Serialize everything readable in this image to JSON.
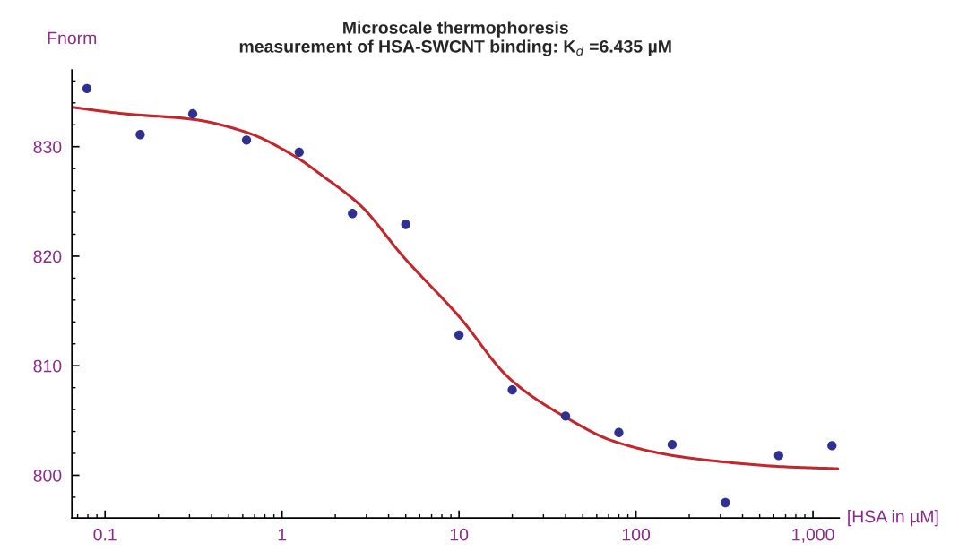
{
  "chart_data": {
    "type": "scatter",
    "title": "Microscale thermophoresis\nmeasurement of HSA-SWCNT binding: K$_{d}$ =6.435 µM",
    "xlabel": "[HSA in µM]",
    "ylabel": "Fnorm",
    "log": "x",
    "xlim": [
      0.065,
      1405
    ],
    "ylim": [
      796.1,
      837.0
    ],
    "xticks": [
      0.1,
      1,
      10,
      100,
      {
        "value": 1000,
        "label": "1,000"
      }
    ],
    "yticks": [
      800,
      810,
      820,
      830
    ],
    "grid": false,
    "legend": false,
    "series": [
      {
        "marker": "circle",
        "color": "#2e3192",
        "x": [
          0.079,
          0.158,
          0.313,
          0.63,
          1.25,
          2.5,
          5.0,
          10,
          20,
          40,
          80,
          160,
          320,
          640,
          1280
        ],
        "values": [
          835.3,
          831.1,
          833.0,
          830.6,
          829.5,
          823.9,
          822.9,
          812.8,
          807.8,
          805.4,
          803.9,
          802.8,
          797.5,
          801.8,
          802.7
        ]
      },
      {
        "type": "line",
        "color": "#c1272d",
        "line_style": "solid",
        "x": [
          0.065,
          0.129,
          0.313,
          0.632,
          1.16,
          1.74,
          2.79,
          4.82,
          10,
          19.4,
          40,
          75,
          162,
          324,
          653,
          1380
        ],
        "values": [
          833.6,
          833.0,
          832.5,
          831.3,
          829.2,
          827.2,
          824.6,
          820.0,
          814.5,
          808.8,
          805.3,
          803.1,
          801.8,
          801.2,
          800.8,
          800.6
        ]
      }
    ]
  }
}
